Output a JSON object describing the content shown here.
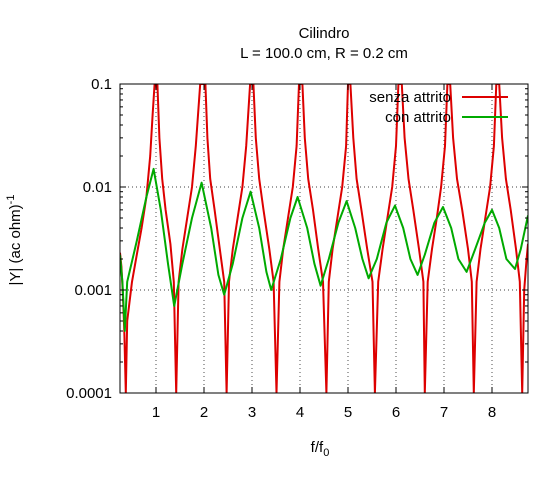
{
  "chart_data": {
    "type": "line",
    "title": "Cilindro",
    "subtitle": "L = 100.0 cm, R = 0.2 cm",
    "xlabel": {
      "base": "f/f",
      "sub": "0"
    },
    "ylabel": {
      "base": "|Y| (ac ohm)",
      "sup": "-1"
    },
    "xlim": [
      0.25,
      8.75
    ],
    "ylim": [
      0.0001,
      0.1
    ],
    "yscale": "log",
    "grid": true,
    "legend_position": "top-right",
    "x_ticks": [
      {
        "value": 1,
        "label": "1"
      },
      {
        "value": 2,
        "label": "2"
      },
      {
        "value": 3,
        "label": "3"
      },
      {
        "value": 4,
        "label": "4"
      },
      {
        "value": 5,
        "label": "5"
      },
      {
        "value": 6,
        "label": "6"
      },
      {
        "value": 7,
        "label": "7"
      },
      {
        "value": 8,
        "label": "8"
      }
    ],
    "y_ticks": [
      {
        "value": 0.0001,
        "label": "0.0001"
      },
      {
        "value": 0.001,
        "label": "0.001"
      },
      {
        "value": 0.01,
        "label": "0.01"
      },
      {
        "value": 0.1,
        "label": "0.1"
      }
    ],
    "series": [
      {
        "name": "senza attrito",
        "color": "#dd0000",
        "points": [
          [
            0.25,
            0.0023
          ],
          [
            0.28,
            0.0017
          ],
          [
            0.31,
            0.0009
          ],
          [
            0.34,
            0.0004
          ],
          [
            0.37,
            0.0001
          ],
          [
            0.4,
            0.0005
          ],
          [
            0.5,
            0.0012
          ],
          [
            0.6,
            0.0022
          ],
          [
            0.7,
            0.004
          ],
          [
            0.8,
            0.008
          ],
          [
            0.88,
            0.02
          ],
          [
            0.93,
            0.05
          ],
          [
            0.97,
            0.1
          ],
          [
            1.03,
            0.1
          ],
          [
            1.07,
            0.03
          ],
          [
            1.13,
            0.012
          ],
          [
            1.2,
            0.006
          ],
          [
            1.3,
            0.0028
          ],
          [
            1.37,
            0.0012
          ],
          [
            1.42,
            0.0001
          ],
          [
            1.47,
            0.0012
          ],
          [
            1.55,
            0.0025
          ],
          [
            1.65,
            0.005
          ],
          [
            1.75,
            0.01
          ],
          [
            1.83,
            0.025
          ],
          [
            1.92,
            0.1
          ],
          [
            2.03,
            0.1
          ],
          [
            2.07,
            0.03
          ],
          [
            2.13,
            0.012
          ],
          [
            2.22,
            0.006
          ],
          [
            2.33,
            0.0025
          ],
          [
            2.42,
            0.0012
          ],
          [
            2.47,
            0.0001
          ],
          [
            2.52,
            0.0012
          ],
          [
            2.6,
            0.0025
          ],
          [
            2.7,
            0.005
          ],
          [
            2.8,
            0.01
          ],
          [
            2.88,
            0.025
          ],
          [
            2.96,
            0.1
          ],
          [
            3.03,
            0.1
          ],
          [
            3.08,
            0.03
          ],
          [
            3.15,
            0.012
          ],
          [
            3.24,
            0.006
          ],
          [
            3.36,
            0.0025
          ],
          [
            3.45,
            0.0012
          ],
          [
            3.51,
            0.0001
          ],
          [
            3.57,
            0.0012
          ],
          [
            3.65,
            0.0025
          ],
          [
            3.75,
            0.005
          ],
          [
            3.85,
            0.01
          ],
          [
            3.93,
            0.025
          ],
          [
            3.98,
            0.1
          ],
          [
            4.05,
            0.1
          ],
          [
            4.1,
            0.03
          ],
          [
            4.17,
            0.012
          ],
          [
            4.27,
            0.006
          ],
          [
            4.38,
            0.0025
          ],
          [
            4.48,
            0.0012
          ],
          [
            4.55,
            0.0001
          ],
          [
            4.6,
            0.0012
          ],
          [
            4.68,
            0.0025
          ],
          [
            4.78,
            0.005
          ],
          [
            4.88,
            0.01
          ],
          [
            4.96,
            0.025
          ],
          [
            5.0,
            0.1
          ],
          [
            5.05,
            0.1
          ],
          [
            5.11,
            0.03
          ],
          [
            5.18,
            0.012
          ],
          [
            5.28,
            0.006
          ],
          [
            5.4,
            0.0025
          ],
          [
            5.51,
            0.0012
          ],
          [
            5.56,
            0.0001
          ],
          [
            5.63,
            0.0012
          ],
          [
            5.72,
            0.0025
          ],
          [
            5.82,
            0.005
          ],
          [
            5.92,
            0.01
          ],
          [
            6.0,
            0.025
          ],
          [
            6.05,
            0.1
          ],
          [
            6.12,
            0.1
          ],
          [
            6.18,
            0.03
          ],
          [
            6.26,
            0.012
          ],
          [
            6.36,
            0.006
          ],
          [
            6.48,
            0.0025
          ],
          [
            6.57,
            0.0012
          ],
          [
            6.6,
            0.0001
          ],
          [
            6.66,
            0.0012
          ],
          [
            6.75,
            0.0025
          ],
          [
            6.85,
            0.005
          ],
          [
            6.94,
            0.01
          ],
          [
            7.02,
            0.025
          ],
          [
            7.07,
            0.1
          ],
          [
            7.13,
            0.1
          ],
          [
            7.19,
            0.03
          ],
          [
            7.27,
            0.012
          ],
          [
            7.38,
            0.006
          ],
          [
            7.5,
            0.0025
          ],
          [
            7.58,
            0.0012
          ],
          [
            7.62,
            0.0001
          ],
          [
            7.68,
            0.0012
          ],
          [
            7.76,
            0.0025
          ],
          [
            7.86,
            0.005
          ],
          [
            7.96,
            0.01
          ],
          [
            8.04,
            0.025
          ],
          [
            8.09,
            0.1
          ],
          [
            8.15,
            0.1
          ],
          [
            8.21,
            0.03
          ],
          [
            8.29,
            0.012
          ],
          [
            8.39,
            0.006
          ],
          [
            8.5,
            0.0025
          ],
          [
            8.58,
            0.0012
          ],
          [
            8.63,
            0.0001
          ],
          [
            8.67,
            0.001
          ],
          [
            8.72,
            0.002
          ],
          [
            8.75,
            0.0028
          ]
        ]
      },
      {
        "name": "con attrito",
        "color": "#00aa00",
        "points": [
          [
            0.25,
            0.0022
          ],
          [
            0.3,
            0.0012
          ],
          [
            0.35,
            0.0004
          ],
          [
            0.4,
            0.0012
          ],
          [
            0.6,
            0.003
          ],
          [
            0.8,
            0.008
          ],
          [
            0.95,
            0.015
          ],
          [
            1.1,
            0.006
          ],
          [
            1.25,
            0.0018
          ],
          [
            1.38,
            0.0007
          ],
          [
            1.55,
            0.0018
          ],
          [
            1.75,
            0.005
          ],
          [
            1.95,
            0.011
          ],
          [
            2.15,
            0.004
          ],
          [
            2.3,
            0.0014
          ],
          [
            2.42,
            0.0009
          ],
          [
            2.6,
            0.0018
          ],
          [
            2.8,
            0.005
          ],
          [
            2.97,
            0.009
          ],
          [
            3.15,
            0.004
          ],
          [
            3.3,
            0.0015
          ],
          [
            3.4,
            0.001
          ],
          [
            3.6,
            0.002
          ],
          [
            3.8,
            0.005
          ],
          [
            3.95,
            0.008
          ],
          [
            4.15,
            0.004
          ],
          [
            4.3,
            0.0018
          ],
          [
            4.43,
            0.0011
          ],
          [
            4.6,
            0.002
          ],
          [
            4.8,
            0.0045
          ],
          [
            4.97,
            0.0073
          ],
          [
            5.15,
            0.004
          ],
          [
            5.3,
            0.002
          ],
          [
            5.43,
            0.0013
          ],
          [
            5.6,
            0.002
          ],
          [
            5.8,
            0.0045
          ],
          [
            5.98,
            0.0066
          ],
          [
            6.15,
            0.004
          ],
          [
            6.3,
            0.002
          ],
          [
            6.45,
            0.0014
          ],
          [
            6.6,
            0.0022
          ],
          [
            6.8,
            0.0045
          ],
          [
            6.98,
            0.0064
          ],
          [
            7.15,
            0.004
          ],
          [
            7.3,
            0.002
          ],
          [
            7.47,
            0.0015
          ],
          [
            7.65,
            0.0025
          ],
          [
            7.85,
            0.0045
          ],
          [
            8.0,
            0.006
          ],
          [
            8.15,
            0.004
          ],
          [
            8.3,
            0.002
          ],
          [
            8.48,
            0.0016
          ],
          [
            8.6,
            0.0025
          ],
          [
            8.75,
            0.0053
          ]
        ]
      }
    ]
  }
}
